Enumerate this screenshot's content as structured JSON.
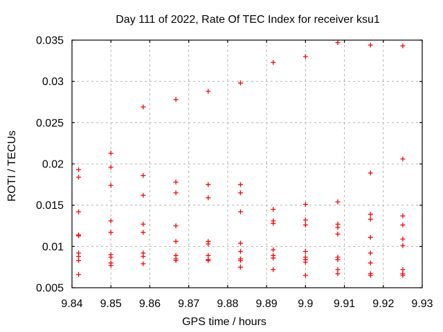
{
  "chart_data": {
    "type": "scatter",
    "title": "Day 111 of 2022, Rate Of TEC Index for receiver ksu1",
    "xlabel": "GPS time / hours",
    "ylabel": "ROTI / TECUs",
    "xlim": [
      9.84,
      9.93
    ],
    "ylim": [
      0.005,
      0.035
    ],
    "grid": "dashed",
    "legend": "none",
    "marker": "plus",
    "marker_color": "#ff0000",
    "grid_color": "#b0b0b0",
    "frame_color": "#000000",
    "x_ticks": [
      {
        "value": 9.84,
        "label": "9.84"
      },
      {
        "value": 9.85,
        "label": "9.85"
      },
      {
        "value": 9.86,
        "label": "9.86"
      },
      {
        "value": 9.87,
        "label": "9.87"
      },
      {
        "value": 9.88,
        "label": "9.88"
      },
      {
        "value": 9.89,
        "label": "9.89"
      },
      {
        "value": 9.9,
        "label": "9.9"
      },
      {
        "value": 9.91,
        "label": "9.91"
      },
      {
        "value": 9.92,
        "label": "9.92"
      },
      {
        "value": 9.93,
        "label": "9.93"
      }
    ],
    "y_ticks": [
      {
        "value": 0.005,
        "label": "0.005"
      },
      {
        "value": 0.01,
        "label": "0.01"
      },
      {
        "value": 0.015,
        "label": "0.015"
      },
      {
        "value": 0.02,
        "label": "0.02"
      },
      {
        "value": 0.025,
        "label": "0.025"
      },
      {
        "value": 0.03,
        "label": "0.03"
      },
      {
        "value": 0.035,
        "label": "0.035"
      }
    ],
    "series": [
      {
        "time": 9.8417,
        "values": [
          0.0193,
          0.0184,
          0.0142,
          0.0114,
          0.0113,
          0.0092,
          0.0088,
          0.0083,
          0.0066
        ]
      },
      {
        "time": 9.85,
        "values": [
          0.0213,
          0.0196,
          0.0174,
          0.0131,
          0.0117,
          0.009,
          0.0087,
          0.008,
          0.0077
        ]
      },
      {
        "time": 9.8583,
        "values": [
          0.0269,
          0.0186,
          0.0162,
          0.0127,
          0.0117,
          0.0092,
          0.0088,
          0.0079
        ]
      },
      {
        "time": 9.8667,
        "values": [
          0.0278,
          0.0178,
          0.0165,
          0.0125,
          0.0106,
          0.0089,
          0.0085,
          0.0083
        ]
      },
      {
        "time": 9.875,
        "values": [
          0.0288,
          0.0175,
          0.0159,
          0.0106,
          0.0103,
          0.0089,
          0.0084,
          0.0083
        ]
      },
      {
        "time": 9.8833,
        "values": [
          0.0298,
          0.0175,
          0.0165,
          0.0142,
          0.0104,
          0.0094,
          0.0085,
          0.0083,
          0.0075
        ]
      },
      {
        "time": 9.8917,
        "values": [
          0.0323,
          0.0145,
          0.0131,
          0.0128,
          0.0096,
          0.0089,
          0.0086,
          0.0072
        ]
      },
      {
        "time": 9.9,
        "values": [
          0.033,
          0.0151,
          0.0132,
          0.0126,
          0.0094,
          0.0087,
          0.0084,
          0.0081,
          0.0065
        ]
      },
      {
        "time": 9.9083,
        "values": [
          0.0347,
          0.0154,
          0.0127,
          0.0123,
          0.0115,
          0.0087,
          0.0084,
          0.0072,
          0.0067
        ]
      },
      {
        "time": 9.9167,
        "values": [
          0.0344,
          0.0189,
          0.0139,
          0.0133,
          0.0111,
          0.0092,
          0.008,
          0.0067,
          0.0065
        ]
      },
      {
        "time": 9.925,
        "values": [
          0.0343,
          0.0206,
          0.0137,
          0.0126,
          0.0109,
          0.0101,
          0.0072,
          0.0067,
          0.0065
        ]
      }
    ]
  }
}
